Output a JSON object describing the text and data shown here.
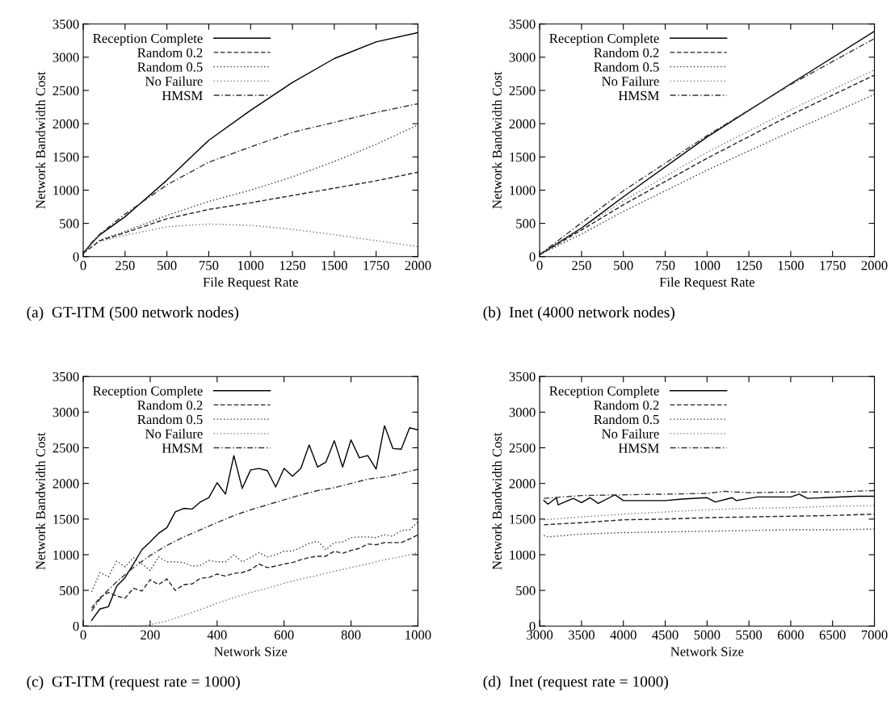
{
  "chart_data": [
    {
      "type": "line",
      "title": "(a)  GT-ITM (500 network nodes)",
      "xlabel": "File Request Rate",
      "ylabel": "Network Bandwidth Cost",
      "xlim": [
        0,
        2000
      ],
      "xticks": [
        0,
        250,
        500,
        750,
        1000,
        1250,
        1500,
        1750,
        2000
      ],
      "ylim": [
        0,
        3500
      ],
      "yticks": [
        0,
        500,
        1000,
        1500,
        2000,
        2500,
        3000,
        3500
      ],
      "legend": "top left",
      "grid": false,
      "series": [
        {
          "name": "Reception Complete",
          "color": "#000000",
          "line_style": "solid",
          "x": [
            0,
            50,
            100,
            250,
            500,
            750,
            1000,
            1250,
            1500,
            1750,
            2000
          ],
          "values": [
            50,
            200,
            330,
            600,
            1150,
            1750,
            2200,
            2620,
            2980,
            3230,
            3370
          ]
        },
        {
          "name": "Random 0.2",
          "color": "#222222",
          "line_style": "dashed",
          "x": [
            0,
            100,
            250,
            500,
            750,
            1000,
            1250,
            1500,
            1750,
            2000
          ],
          "values": [
            50,
            240,
            360,
            570,
            710,
            810,
            920,
            1030,
            1140,
            1270
          ]
        },
        {
          "name": "Random 0.5",
          "color": "#333333",
          "line_style": "dotted",
          "x": [
            0,
            100,
            250,
            500,
            750,
            1000,
            1250,
            1500,
            1750,
            2000
          ],
          "values": [
            50,
            250,
            380,
            620,
            830,
            1000,
            1200,
            1430,
            1690,
            1980
          ]
        },
        {
          "name": "No Failure",
          "color": "#777777",
          "line_style": "dotted",
          "x": [
            0,
            100,
            250,
            500,
            750,
            1000,
            1250,
            1500,
            1750,
            2000
          ],
          "values": [
            50,
            230,
            320,
            450,
            490,
            470,
            410,
            330,
            240,
            150
          ]
        },
        {
          "name": "HMSM",
          "color": "#333333",
          "line_style": "dashdot",
          "x": [
            0,
            50,
            100,
            250,
            500,
            750,
            1000,
            1250,
            1500,
            1750,
            2000
          ],
          "values": [
            50,
            210,
            340,
            640,
            1080,
            1420,
            1650,
            1870,
            2020,
            2170,
            2300
          ]
        }
      ]
    },
    {
      "type": "line",
      "title": "(b)  Inet (4000 network nodes)",
      "xlabel": "File Request Rate",
      "ylabel": "Network Bandwidth Cost",
      "xlim": [
        0,
        2000
      ],
      "xticks": [
        0,
        250,
        500,
        750,
        1000,
        1250,
        1500,
        1750,
        2000
      ],
      "ylim": [
        0,
        3500
      ],
      "yticks": [
        0,
        500,
        1000,
        1500,
        2000,
        2500,
        3000,
        3500
      ],
      "legend": "top left",
      "grid": false,
      "series": [
        {
          "name": "Reception Complete",
          "color": "#000000",
          "line_style": "solid",
          "x": [
            0,
            250,
            500,
            1000,
            1500,
            2000
          ],
          "values": [
            30,
            430,
            900,
            1800,
            2600,
            3390
          ]
        },
        {
          "name": "Random 0.2",
          "color": "#222222",
          "line_style": "dashed",
          "x": [
            0,
            250,
            500,
            1000,
            1500,
            2000
          ],
          "values": [
            30,
            400,
            780,
            1480,
            2130,
            2730
          ]
        },
        {
          "name": "Random 0.5",
          "color": "#333333",
          "line_style": "dotted",
          "x": [
            0,
            250,
            500,
            1000,
            1500,
            2000
          ],
          "values": [
            30,
            340,
            680,
            1300,
            1880,
            2440
          ]
        },
        {
          "name": "No Failure",
          "color": "#777777",
          "line_style": "dotted",
          "x": [
            0,
            250,
            500,
            1000,
            1500,
            2000
          ],
          "values": [
            30,
            430,
            840,
            1570,
            2210,
            2810
          ]
        },
        {
          "name": "HMSM",
          "color": "#333333",
          "line_style": "dashdot",
          "x": [
            0,
            250,
            500,
            1000,
            1500,
            2000
          ],
          "values": [
            30,
            510,
            990,
            1820,
            2590,
            3280
          ]
        }
      ]
    },
    {
      "type": "line",
      "title": "(c)  GT-ITM (request rate = 1000)",
      "xlabel": "Network Size",
      "ylabel": "Network Bandwidth Cost",
      "xlim": [
        0,
        1000
      ],
      "xticks": [
        0,
        200,
        400,
        600,
        800,
        1000
      ],
      "ylim": [
        0,
        3500
      ],
      "yticks": [
        0,
        500,
        1000,
        1500,
        2000,
        2500,
        3000,
        3500
      ],
      "legend": "top left",
      "grid": false,
      "series": [
        {
          "name": "Reception Complete",
          "color": "#000000",
          "line_style": "solid",
          "x": [
            25,
            50,
            75,
            100,
            125,
            150,
            175,
            200,
            225,
            250,
            275,
            300,
            325,
            350,
            375,
            400,
            425,
            450,
            475,
            500,
            525,
            550,
            575,
            600,
            625,
            650,
            675,
            700,
            725,
            750,
            775,
            800,
            825,
            850,
            875,
            900,
            925,
            950,
            975,
            1000
          ],
          "values": [
            80,
            240,
            270,
            560,
            680,
            870,
            1070,
            1180,
            1300,
            1380,
            1600,
            1650,
            1640,
            1740,
            1800,
            2010,
            1850,
            2390,
            1930,
            2190,
            2210,
            2180,
            1950,
            2210,
            2100,
            2210,
            2540,
            2230,
            2300,
            2600,
            2230,
            2610,
            2360,
            2390,
            2200,
            2810,
            2490,
            2480,
            2780,
            2750
          ]
        },
        {
          "name": "Random 0.2",
          "color": "#222222",
          "line_style": "dashed",
          "x": [
            25,
            50,
            75,
            100,
            125,
            150,
            175,
            200,
            225,
            250,
            275,
            300,
            325,
            350,
            375,
            400,
            425,
            450,
            475,
            500,
            525,
            550,
            575,
            600,
            625,
            650,
            675,
            700,
            725,
            750,
            775,
            800,
            825,
            850,
            875,
            900,
            925,
            950,
            975,
            1000
          ],
          "values": [
            250,
            400,
            470,
            420,
            390,
            530,
            490,
            650,
            580,
            660,
            500,
            580,
            590,
            670,
            680,
            730,
            700,
            740,
            750,
            790,
            870,
            820,
            840,
            870,
            890,
            930,
            960,
            980,
            980,
            1050,
            1020,
            1060,
            1090,
            1150,
            1140,
            1170,
            1170,
            1170,
            1220,
            1280
          ]
        },
        {
          "name": "Random 0.5",
          "color": "#333333",
          "line_style": "dotted",
          "x": [
            25,
            50,
            75,
            100,
            125,
            150,
            175,
            200,
            225,
            250,
            275,
            300,
            325,
            350,
            375,
            400,
            425,
            450,
            475,
            500,
            525,
            550,
            575,
            600,
            625,
            650,
            675,
            700,
            725,
            750,
            775,
            800,
            825,
            850,
            875,
            900,
            925,
            950,
            975,
            1000
          ],
          "values": [
            480,
            750,
            690,
            910,
            830,
            960,
            870,
            780,
            970,
            900,
            900,
            890,
            840,
            850,
            920,
            900,
            900,
            1000,
            900,
            960,
            1030,
            970,
            1000,
            1050,
            1050,
            1100,
            1160,
            1190,
            1070,
            1170,
            1180,
            1240,
            1250,
            1250,
            1240,
            1280,
            1260,
            1340,
            1350,
            1460
          ]
        },
        {
          "name": "No Failure",
          "color": "#777777",
          "line_style": "dotted",
          "x": [
            25,
            175,
            200,
            250,
            300,
            350,
            400,
            450,
            500,
            550,
            600,
            650,
            700,
            750,
            800,
            850,
            900,
            950,
            1000
          ],
          "values": [
            0,
            0,
            20,
            70,
            150,
            230,
            320,
            400,
            470,
            530,
            600,
            660,
            710,
            770,
            820,
            870,
            930,
            970,
            1030
          ]
        },
        {
          "name": "HMSM",
          "color": "#333333",
          "line_style": "dashdot",
          "x": [
            25,
            50,
            75,
            100,
            150,
            200,
            250,
            300,
            350,
            400,
            450,
            500,
            550,
            600,
            650,
            700,
            750,
            800,
            850,
            900,
            950,
            1000
          ],
          "values": [
            210,
            380,
            510,
            620,
            820,
            990,
            1130,
            1250,
            1350,
            1450,
            1550,
            1630,
            1700,
            1770,
            1840,
            1900,
            1940,
            2000,
            2060,
            2090,
            2140,
            2200
          ]
        }
      ]
    },
    {
      "type": "line",
      "title": "(d)  Inet (request rate = 1000)",
      "xlabel": "Network Size",
      "ylabel": "Network Bandwidth Cost",
      "xlim": [
        3000,
        7000
      ],
      "xticks": [
        3000,
        3500,
        4000,
        4500,
        5000,
        5500,
        6000,
        6500,
        7000
      ],
      "ylim": [
        0,
        3500
      ],
      "yticks": [
        0,
        500,
        1000,
        1500,
        2000,
        2500,
        3000,
        3500
      ],
      "legend": "top left",
      "grid": false,
      "series": [
        {
          "name": "Reception Complete",
          "color": "#000000",
          "line_style": "solid",
          "x": [
            3050,
            3100,
            3200,
            3220,
            3400,
            3500,
            3600,
            3700,
            3900,
            4000,
            4200,
            4500,
            4700,
            5000,
            5100,
            5300,
            5350,
            5600,
            6000,
            6100,
            6200,
            6400,
            6800,
            7000
          ],
          "values": [
            1760,
            1710,
            1800,
            1700,
            1790,
            1730,
            1800,
            1720,
            1840,
            1760,
            1760,
            1760,
            1780,
            1800,
            1740,
            1800,
            1760,
            1810,
            1810,
            1850,
            1790,
            1800,
            1820,
            1820
          ]
        },
        {
          "name": "Random 0.2",
          "color": "#222222",
          "line_style": "dashed",
          "x": [
            3050,
            3500,
            4000,
            4500,
            5000,
            5500,
            6000,
            6500,
            7000
          ],
          "values": [
            1420,
            1450,
            1490,
            1500,
            1520,
            1530,
            1540,
            1550,
            1570
          ]
        },
        {
          "name": "Random 0.5",
          "color": "#333333",
          "line_style": "dotted",
          "x": [
            3050,
            3100,
            3500,
            4000,
            4500,
            5000,
            5500,
            6000,
            6500,
            7000
          ],
          "values": [
            1270,
            1250,
            1290,
            1310,
            1320,
            1330,
            1340,
            1350,
            1350,
            1360
          ]
        },
        {
          "name": "No Failure",
          "color": "#777777",
          "line_style": "dotted",
          "x": [
            3050,
            3500,
            4000,
            4500,
            5000,
            5500,
            6000,
            6500,
            7000
          ],
          "values": [
            1490,
            1530,
            1570,
            1600,
            1630,
            1650,
            1660,
            1680,
            1690
          ]
        },
        {
          "name": "HMSM",
          "color": "#333333",
          "line_style": "dashdot",
          "x": [
            3050,
            3500,
            4000,
            4500,
            5000,
            5200,
            5500,
            6000,
            6500,
            7000
          ],
          "values": [
            1790,
            1830,
            1840,
            1850,
            1860,
            1890,
            1870,
            1880,
            1880,
            1900
          ]
        }
      ]
    }
  ]
}
